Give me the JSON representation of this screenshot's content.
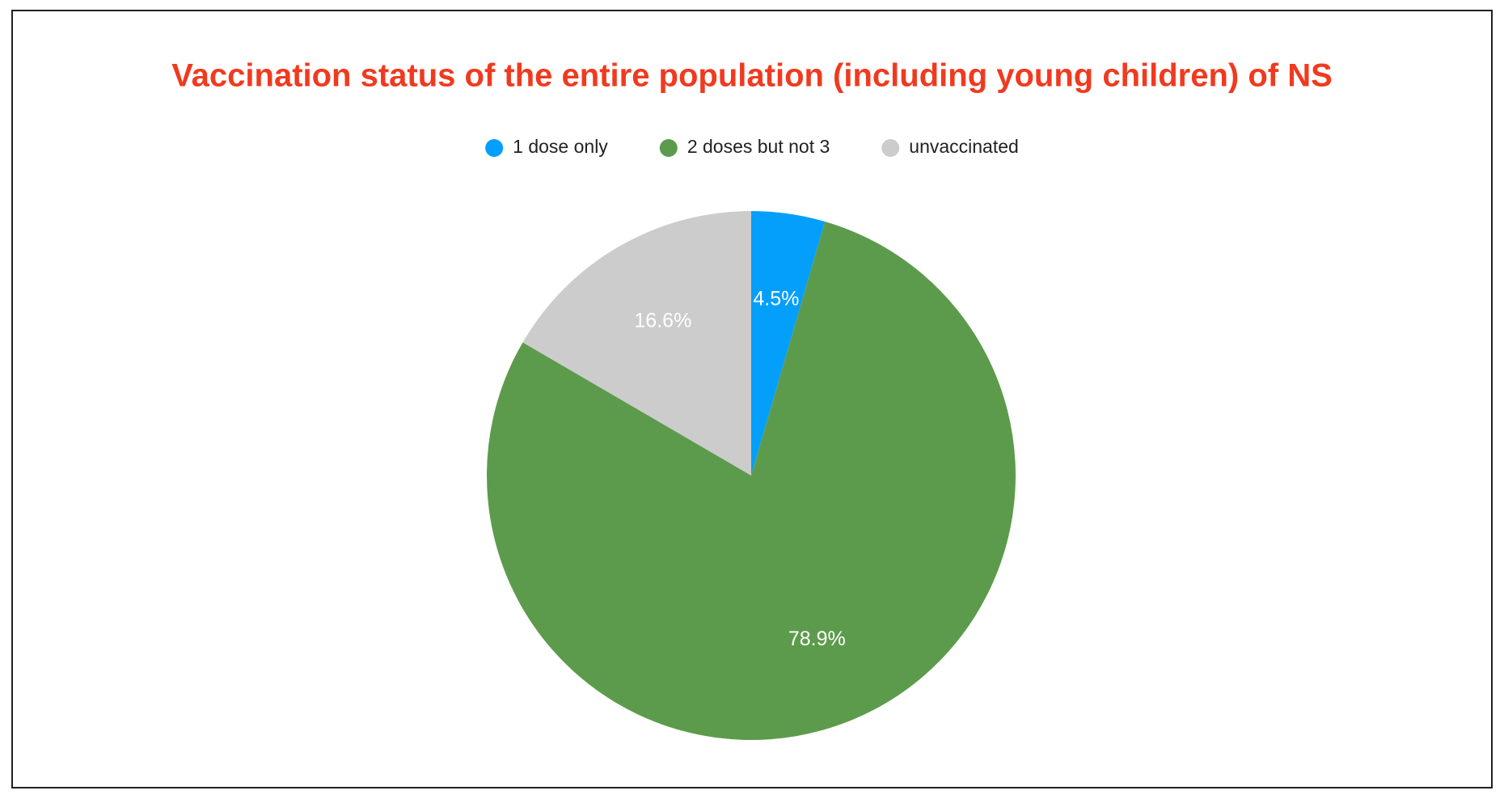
{
  "chart_data": {
    "type": "pie",
    "title": "Vaccination status of the entire population (including young children) of NS",
    "categories": [
      "1 dose only",
      "2 doses but not 3",
      "unvaccinated"
    ],
    "values": [
      4.5,
      78.9,
      16.6
    ],
    "value_labels": [
      "4.5%",
      "78.9%",
      "16.6%"
    ],
    "colors": [
      "#049ffb",
      "#5d9b4c",
      "#cccccc"
    ],
    "legend": "top"
  }
}
